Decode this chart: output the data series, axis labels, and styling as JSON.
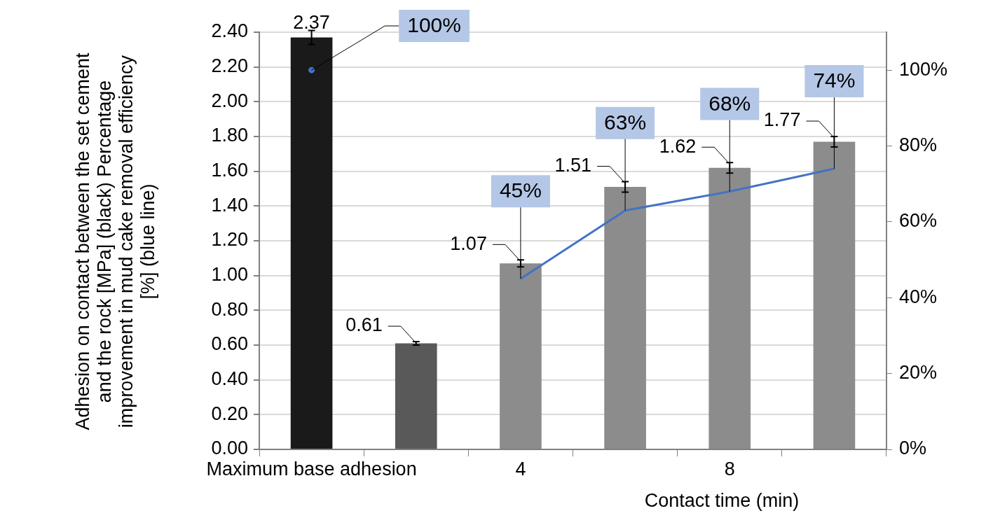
{
  "chart_data": {
    "type": "bar",
    "xlabel": "Contact time (min)",
    "ylabel": "Adhesion on contact between the set cement and the rock [MPa] (black) Percentage improvement in mud cake removal efficiency [%] (blue line)",
    "categories": [
      "Maximum base adhesion",
      null,
      "4",
      null,
      "8",
      null
    ],
    "series": [
      {
        "colors": [
          "#1a1a1a",
          "#595959",
          "#8c8c8c",
          "#8c8c8c",
          "#8c8c8c",
          "#8c8c8c"
        ],
        "values": [
          2.37,
          0.61,
          1.07,
          1.51,
          1.62,
          1.77
        ],
        "errors": [
          0.04,
          0.01,
          0.02,
          0.03,
          0.03,
          0.03
        ],
        "value_labels": [
          "2.37",
          "0.61",
          "1.07",
          "1.51",
          "1.62",
          "1.77"
        ]
      },
      {
        "type": "line",
        "axis": "y2",
        "color": "#4472c4",
        "values": [
          100,
          null,
          45,
          63,
          68,
          74
        ],
        "value_labels": [
          "100%",
          null,
          "45%",
          "63%",
          "68%",
          "74%"
        ]
      }
    ],
    "ylim": [
      0,
      2.4
    ],
    "yticks": [
      {
        "value": 0,
        "label": "0.00"
      },
      {
        "value": 0.2,
        "label": "0.20"
      },
      {
        "value": 0.4,
        "label": "0.40"
      },
      {
        "value": 0.6,
        "label": "0.60"
      },
      {
        "value": 0.8,
        "label": "0.80"
      },
      {
        "value": 1,
        "label": "1.00"
      },
      {
        "value": 1.2,
        "label": "1.20"
      },
      {
        "value": 1.4,
        "label": "1.40"
      },
      {
        "value": 1.6,
        "label": "1.60"
      },
      {
        "value": 1.8,
        "label": "1.80"
      },
      {
        "value": 2,
        "label": "2.00"
      },
      {
        "value": 2.2,
        "label": "2.20"
      },
      {
        "value": 2.4,
        "label": "2.40"
      }
    ],
    "y2lim": [
      0,
      110
    ],
    "y2ticks": [
      {
        "value": 0,
        "label": "0%"
      },
      {
        "value": 20,
        "label": "20%"
      },
      {
        "value": 40,
        "label": "40%"
      },
      {
        "value": 60,
        "label": "60%"
      },
      {
        "value": 80,
        "label": "80%"
      },
      {
        "value": 100,
        "label": "100%"
      }
    ],
    "grid": "y",
    "legend": false,
    "marker": "none",
    "line_style": "solid"
  }
}
